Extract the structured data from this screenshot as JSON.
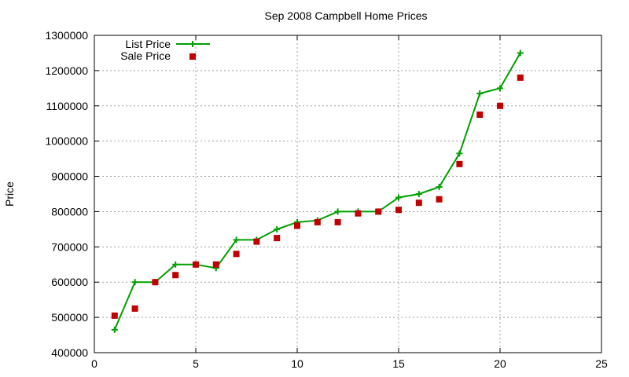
{
  "chart_data": {
    "type": "line",
    "title": "Sep 2008 Campbell Home Prices",
    "xlabel": "",
    "ylabel": "Price",
    "xlim": [
      0,
      25
    ],
    "ylim": [
      400000,
      1300000
    ],
    "x_ticks": [
      0,
      5,
      10,
      15,
      20,
      25
    ],
    "y_ticks": [
      400000,
      500000,
      600000,
      700000,
      800000,
      900000,
      1000000,
      1100000,
      1200000,
      1300000
    ],
    "grid": true,
    "legend_position": "top-left",
    "series": [
      {
        "name": "List Price",
        "style": "line-with-plus-markers",
        "color": "#00a000",
        "x": [
          1,
          2,
          3,
          4,
          5,
          6,
          7,
          8,
          9,
          10,
          11,
          12,
          13,
          14,
          15,
          16,
          17,
          18,
          19,
          20,
          21
        ],
        "y": [
          465000,
          600000,
          600000,
          650000,
          650000,
          640000,
          720000,
          720000,
          750000,
          770000,
          775000,
          800000,
          800000,
          800000,
          840000,
          850000,
          870000,
          965000,
          1135000,
          1150000,
          1250000
        ]
      },
      {
        "name": "Sale Price",
        "style": "square-markers",
        "color": "#c00000",
        "x": [
          1,
          2,
          3,
          4,
          5,
          6,
          7,
          8,
          9,
          10,
          11,
          12,
          13,
          14,
          15,
          16,
          17,
          18,
          19,
          20,
          21
        ],
        "y": [
          505000,
          525000,
          600000,
          620000,
          650000,
          650000,
          680000,
          715000,
          725000,
          760000,
          770000,
          770000,
          795000,
          800000,
          805000,
          825000,
          835000,
          935000,
          1075000,
          1100000,
          1180000
        ]
      }
    ]
  }
}
